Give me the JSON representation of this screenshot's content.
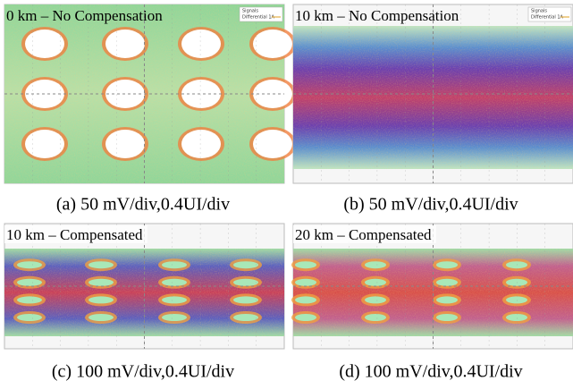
{
  "panels": [
    {
      "title": "0 km – No Compensation",
      "caption": "(a)  50 mV/div,0.4UI/div",
      "legend": [
        "Signals",
        "Differential 1A"
      ]
    },
    {
      "title": "10 km – No Compensation",
      "caption": "(b) 50 mV/div,0.4UI/div",
      "legend": [
        "Signals",
        "Differential 1A"
      ]
    },
    {
      "title": "10 km – Compensated",
      "caption": "(c) 100 mV/div,0.4UI/div"
    },
    {
      "title": "20 km – Compensated",
      "caption": "(d) 100 mV/div,0.4UI/div"
    }
  ]
}
